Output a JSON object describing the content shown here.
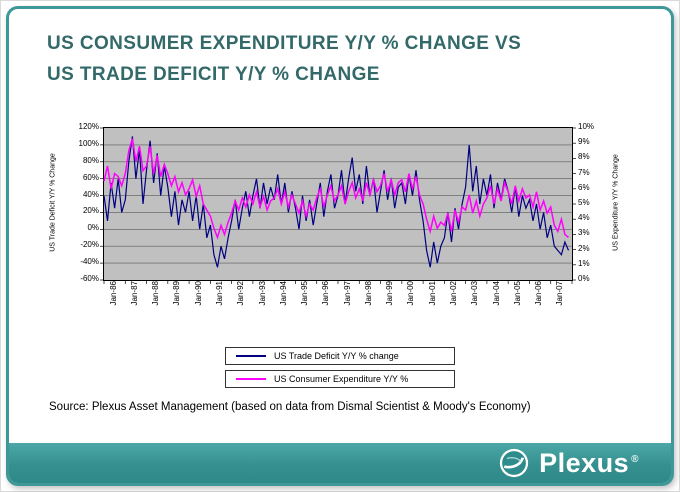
{
  "title": {
    "line1": "US CONSUMER EXPENDITURE Y/Y % CHANGE VS",
    "line2": "US TRADE DEFICIT Y/Y % CHANGE"
  },
  "source": "Source: Plexus Asset Management (based on data from Dismal Scientist & Moody's Economy)",
  "footer": {
    "brand": "Plexus",
    "registered": "®"
  },
  "colors": {
    "frame": "#3E9898",
    "title": "#336969",
    "plot_bg": "#C0C0C0",
    "grid": "#5a5a5a",
    "axis": "#000000",
    "trade": "#000080",
    "expenditure": "#FF00FF"
  },
  "chart_data": {
    "type": "line",
    "title": "",
    "left_axis": {
      "title": "US Trade Deficit Y/Y % Change",
      "ticks": [
        "120%",
        "100%",
        "80%",
        "60%",
        "40%",
        "20%",
        "0%",
        "-20%",
        "-40%",
        "-60%"
      ],
      "ylim": [
        -60,
        120
      ]
    },
    "right_axis": {
      "title": "US Expenditure Y/Y % Change",
      "ticks": [
        "10%",
        "9%",
        "8%",
        "7%",
        "6%",
        "5%",
        "4%",
        "3%",
        "2%",
        "1%",
        "0%"
      ],
      "ylim": [
        0,
        10
      ]
    },
    "x_ticks": [
      "Jan-86",
      "Jan-87",
      "Jan-88",
      "Jan-89",
      "Jan-90",
      "Jan-91",
      "Jan-92",
      "Jan-93",
      "Jan-94",
      "Jan-95",
      "Jan-96",
      "Jan-97",
      "Jan-98",
      "Jan-99",
      "Jan-00",
      "Jan-01",
      "Jan-02",
      "Jan-03",
      "Jan-04",
      "Jan-05",
      "Jan-06",
      "Jan-07"
    ],
    "x_start": 1986,
    "points_per_year": 6,
    "x_span_years": 22,
    "legend": [
      "US Trade Deficit Y/Y % change",
      "US Consumer Expenditure Y/Y %"
    ],
    "series": [
      {
        "name": "US Trade Deficit Y/Y % change",
        "axis": "left",
        "color_key": "trade",
        "values": [
          40,
          10,
          55,
          25,
          60,
          20,
          35,
          80,
          110,
          60,
          95,
          30,
          70,
          105,
          55,
          90,
          40,
          75,
          50,
          15,
          45,
          5,
          35,
          20,
          45,
          10,
          40,
          0,
          30,
          -10,
          5,
          -30,
          -45,
          -20,
          -35,
          -10,
          10,
          35,
          0,
          25,
          45,
          15,
          40,
          60,
          25,
          55,
          30,
          50,
          35,
          65,
          30,
          55,
          20,
          45,
          25,
          0,
          40,
          10,
          35,
          5,
          30,
          55,
          15,
          45,
          65,
          25,
          40,
          70,
          30,
          60,
          85,
          45,
          65,
          30,
          75,
          40,
          60,
          20,
          45,
          70,
          35,
          60,
          25,
          50,
          55,
          30,
          65,
          40,
          70,
          35,
          10,
          -25,
          -45,
          -15,
          -40,
          -20,
          -10,
          20,
          -15,
          25,
          0,
          30,
          50,
          100,
          45,
          75,
          30,
          60,
          40,
          65,
          25,
          55,
          35,
          60,
          45,
          20,
          50,
          15,
          40,
          25,
          35,
          10,
          30,
          0,
          20,
          -10,
          5,
          -20,
          -25,
          -30,
          -15,
          -25
        ]
      },
      {
        "name": "US Consumer Expenditure Y/Y %",
        "axis": "right",
        "color_key": "expenditure",
        "values": [
          6.5,
          7.5,
          6.0,
          7.0,
          6.8,
          6.2,
          7.0,
          8.5,
          9.3,
          7.8,
          8.8,
          7.2,
          7.5,
          8.8,
          7.0,
          8.2,
          6.8,
          7.6,
          7.0,
          6.2,
          6.8,
          5.8,
          6.4,
          5.6,
          6.0,
          6.6,
          5.5,
          6.2,
          5.0,
          4.6,
          4.2,
          3.4,
          2.8,
          3.6,
          3.0,
          3.8,
          4.4,
          5.2,
          4.6,
          5.4,
          4.8,
          5.6,
          5.0,
          5.8,
          4.8,
          5.5,
          4.6,
          5.2,
          5.4,
          6.0,
          5.0,
          5.8,
          4.8,
          5.6,
          5.0,
          4.4,
          5.2,
          4.2,
          5.0,
          4.6,
          5.4,
          6.0,
          4.8,
          5.6,
          6.2,
          5.2,
          5.6,
          6.2,
          5.0,
          5.8,
          6.4,
          5.4,
          6.0,
          5.2,
          6.4,
          5.6,
          6.6,
          5.8,
          6.2,
          7.0,
          5.8,
          6.6,
          5.6,
          6.4,
          6.6,
          5.8,
          7.0,
          6.0,
          6.8,
          5.6,
          5.0,
          4.0,
          3.2,
          4.2,
          3.4,
          3.8,
          3.6,
          4.4,
          3.2,
          4.6,
          3.8,
          4.8,
          4.6,
          5.6,
          4.4,
          5.2,
          4.2,
          5.0,
          5.4,
          6.2,
          5.0,
          6.0,
          5.2,
          6.4,
          5.8,
          5.0,
          6.2,
          5.2,
          6.0,
          5.4,
          5.6,
          4.8,
          5.8,
          4.6,
          5.2,
          4.4,
          4.8,
          3.6,
          3.2,
          4.0,
          3.0,
          2.8
        ]
      }
    ]
  }
}
